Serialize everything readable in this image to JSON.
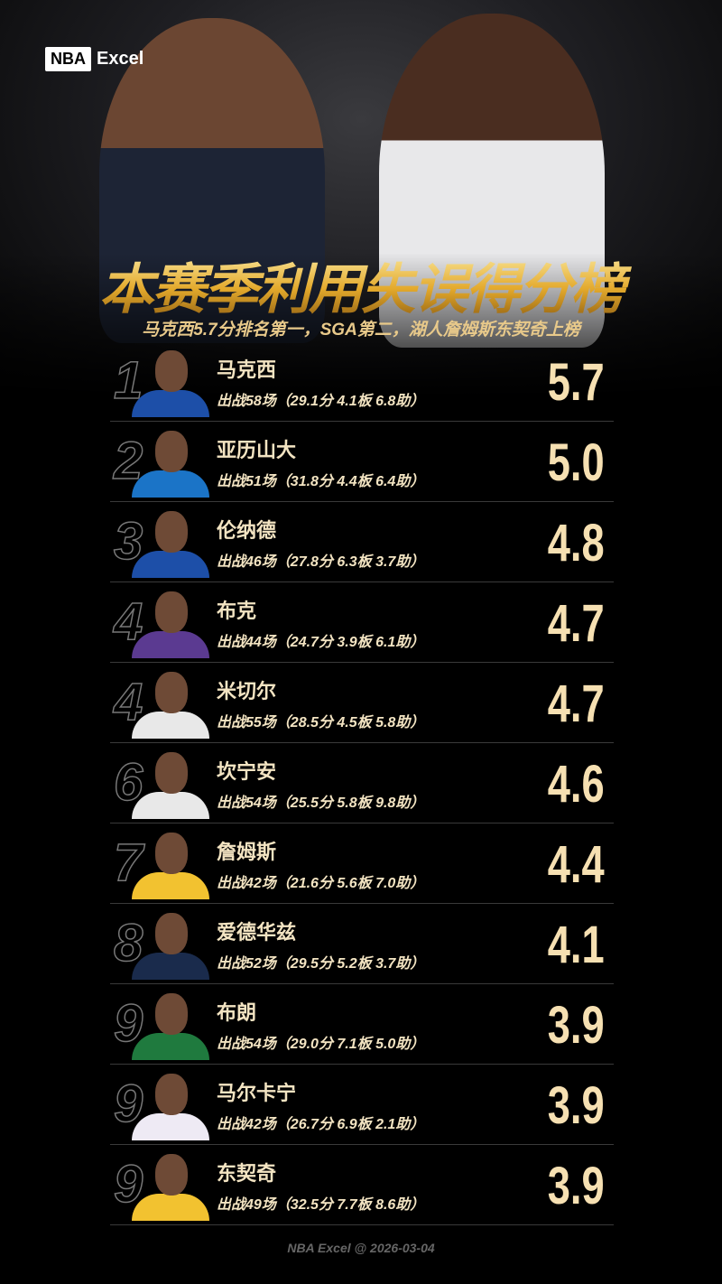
{
  "brand": {
    "logo_left": "NBA",
    "logo_right": "Excel"
  },
  "title": "本赛季利用失误得分榜",
  "subtitle": "马克西5.7分排名第一，SGA第二，湖人詹姆斯东契奇上榜",
  "players": [
    {
      "rank": "1",
      "name": "马克西",
      "stats": "出战58场（29.1分 4.1板 6.8助）",
      "value": "5.7",
      "jersey": "#1d4fa8"
    },
    {
      "rank": "2",
      "name": "亚历山大",
      "stats": "出战51场（31.8分 4.4板 6.4助）",
      "value": "5.0",
      "jersey": "#1b74c7"
    },
    {
      "rank": "3",
      "name": "伦纳德",
      "stats": "出战46场（27.8分 6.3板 3.7助）",
      "value": "4.8",
      "jersey": "#1d4fa8"
    },
    {
      "rank": "4",
      "name": "布克",
      "stats": "出战44场（24.7分 3.9板 6.1助）",
      "value": "4.7",
      "jersey": "#5b3a91"
    },
    {
      "rank": "4",
      "name": "米切尔",
      "stats": "出战55场（28.5分 4.5板 5.8助）",
      "value": "4.7",
      "jersey": "#e8e8e8"
    },
    {
      "rank": "6",
      "name": "坎宁安",
      "stats": "出战54场（25.5分 5.8板 9.8助）",
      "value": "4.6",
      "jersey": "#e8e8e8"
    },
    {
      "rank": "7",
      "name": "詹姆斯",
      "stats": "出战42场（21.6分 5.6板 7.0助）",
      "value": "4.4",
      "jersey": "#f2c230"
    },
    {
      "rank": "8",
      "name": "爱德华兹",
      "stats": "出战52场（29.5分 5.2板 3.7助）",
      "value": "4.1",
      "jersey": "#1a2b4c"
    },
    {
      "rank": "9",
      "name": "布朗",
      "stats": "出战54场（29.0分 7.1板 5.0助）",
      "value": "3.9",
      "jersey": "#1f7a3e"
    },
    {
      "rank": "9",
      "name": "马尔卡宁",
      "stats": "出战42场（26.7分 6.9板 2.1助）",
      "value": "3.9",
      "jersey": "#eeeaf4"
    },
    {
      "rank": "9",
      "name": "东契奇",
      "stats": "出战49场（32.5分 7.7板 8.6助）",
      "value": "3.9",
      "jersey": "#f2c230"
    }
  ],
  "footer": "NBA Excel @ 2026-03-04"
}
